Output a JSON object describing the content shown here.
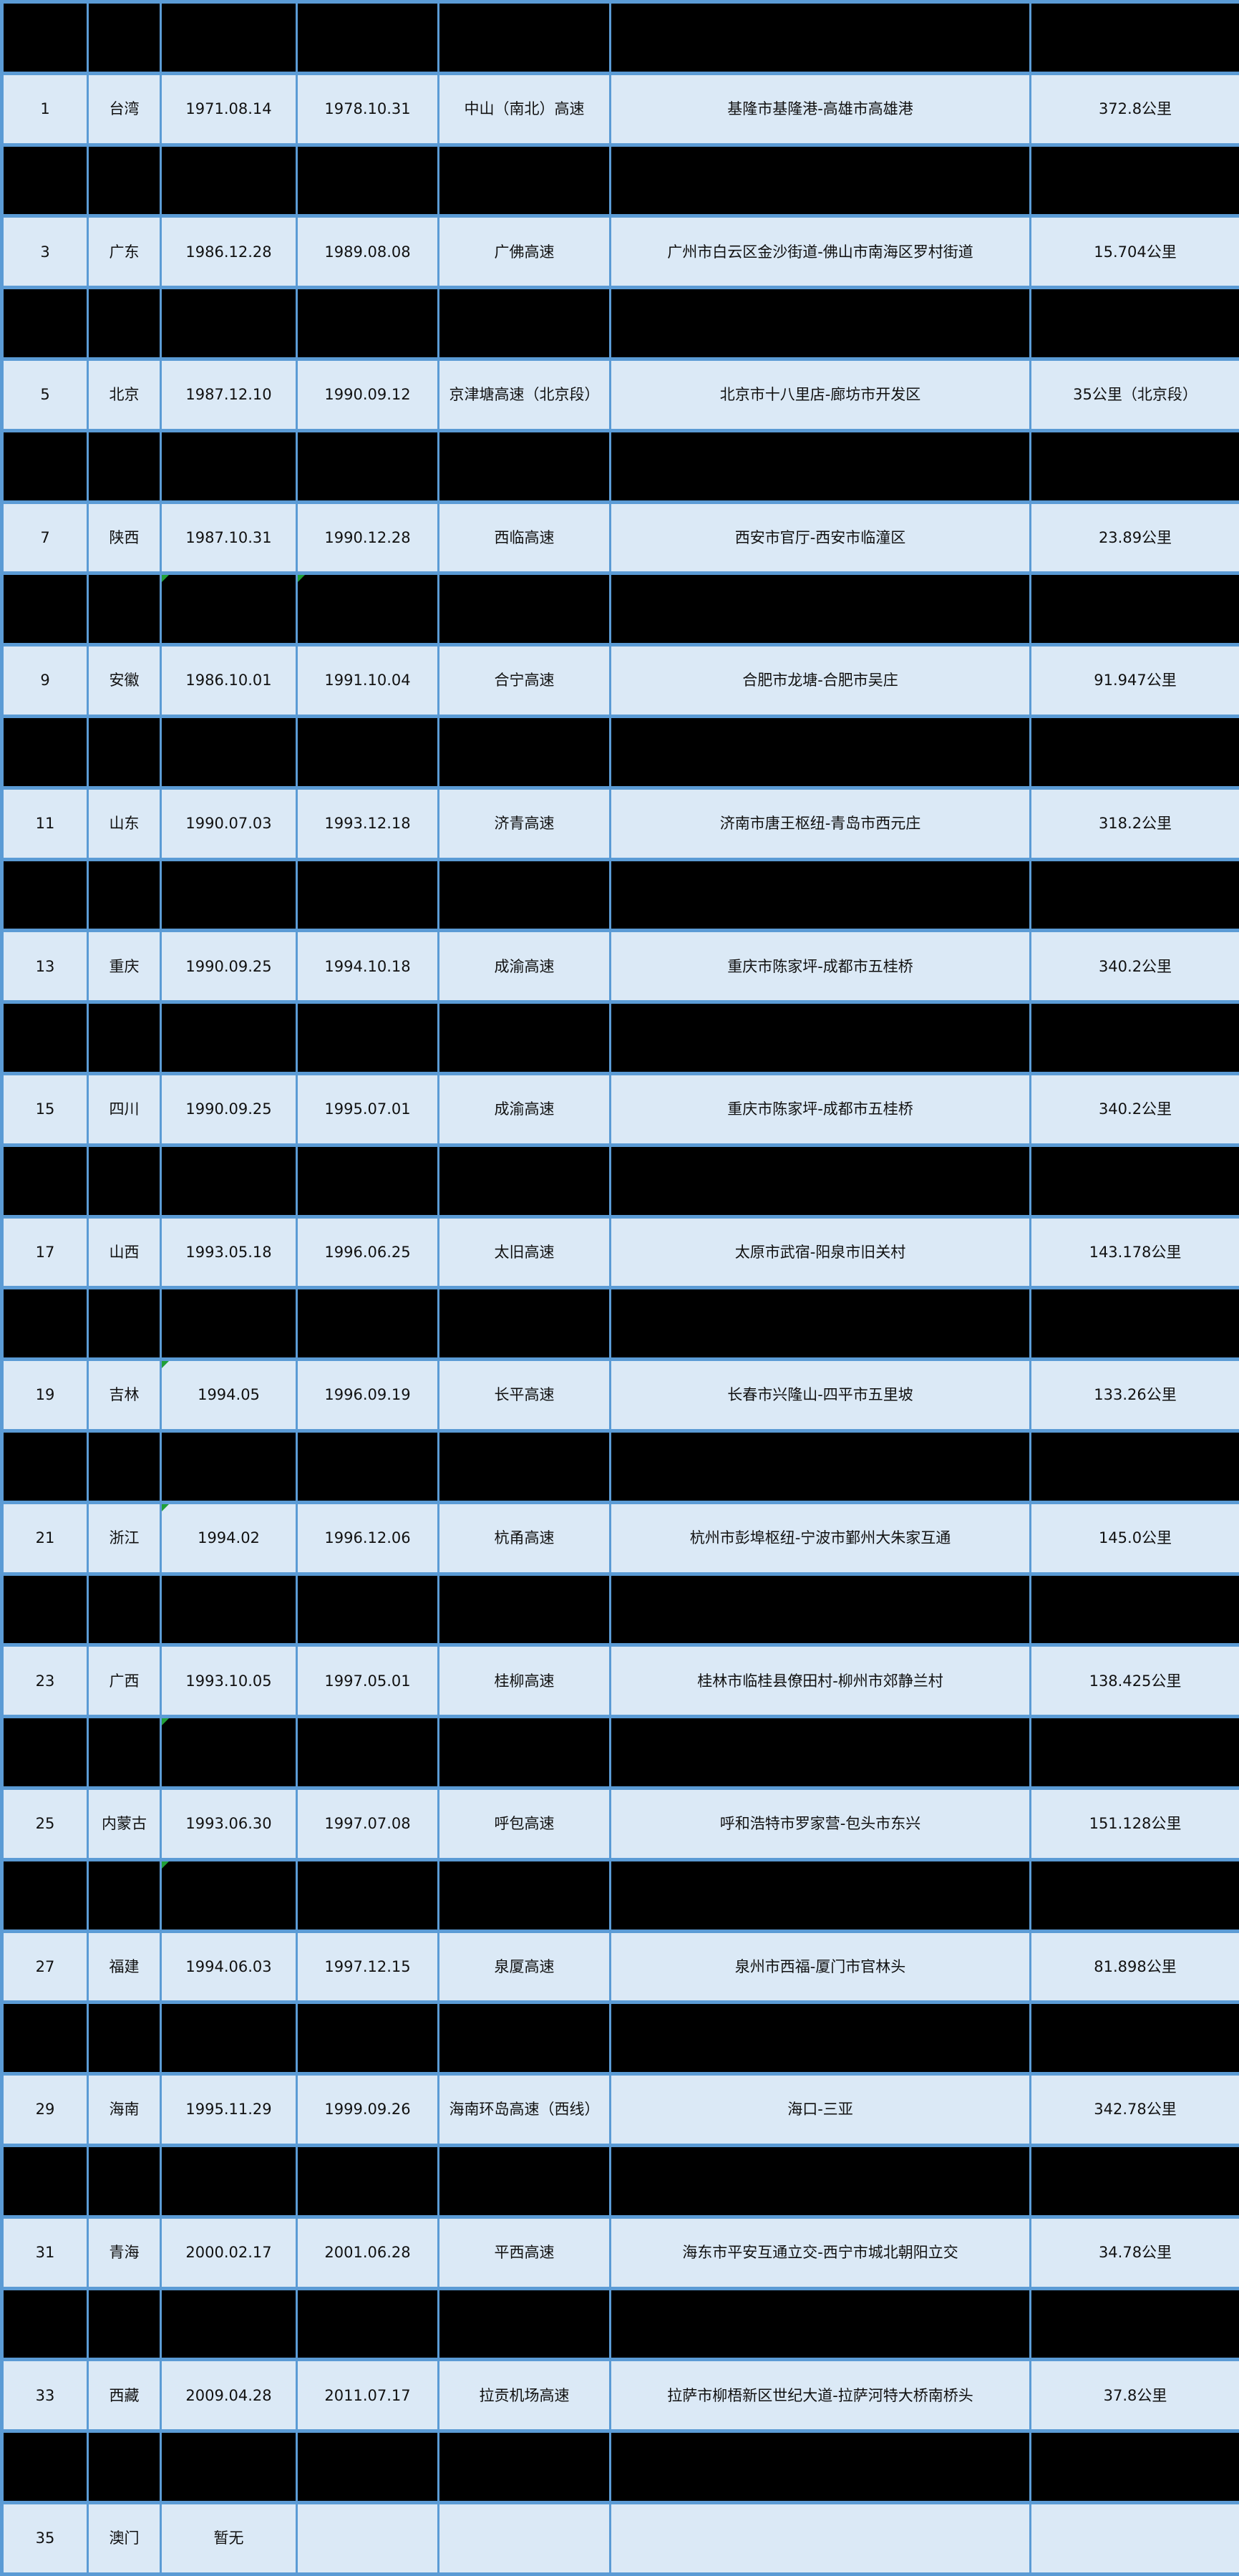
{
  "table": {
    "column_count": 7,
    "header_redacted": true,
    "length_unit_note": "公里",
    "rows": [
      {
        "redacted": true,
        "cells": [
          "",
          "",
          "",
          "",
          "",
          "",
          ""
        ]
      },
      {
        "redacted": false,
        "cells": [
          "1",
          "台湾",
          "1971.08.14",
          "1978.10.31",
          "中山（南北）高速",
          "基隆市基隆港-高雄市高雄港",
          "372.8公里"
        ]
      },
      {
        "redacted": true,
        "cells": [
          "",
          "",
          "",
          "",
          "",
          "",
          ""
        ]
      },
      {
        "redacted": false,
        "cells": [
          "3",
          "广东",
          "1986.12.28",
          "1989.08.08",
          "广佛高速",
          "广州市白云区金沙街道-佛山市南海区罗村街道",
          "15.704公里"
        ]
      },
      {
        "redacted": true,
        "cells": [
          "",
          "",
          "",
          "",
          "",
          "",
          ""
        ]
      },
      {
        "redacted": false,
        "cells": [
          "5",
          "北京",
          "1987.12.10",
          "1990.09.12",
          "京津塘高速（北京段）",
          "北京市十八里店-廊坊市开发区",
          "35公里（北京段）"
        ]
      },
      {
        "redacted": true,
        "cells": [
          "",
          "",
          "",
          "",
          "",
          "",
          ""
        ]
      },
      {
        "redacted": false,
        "cells": [
          "7",
          "陕西",
          "1987.10.31",
          "1990.12.28",
          "西临高速",
          "西安市官厅-西安市临潼区",
          "23.89公里"
        ]
      },
      {
        "redacted": true,
        "cells": [
          "",
          "",
          "",
          "",
          "",
          "",
          ""
        ]
      },
      {
        "redacted": false,
        "cells": [
          "9",
          "安徽",
          "1986.10.01",
          "1991.10.04",
          "合宁高速",
          "合肥市龙塘-合肥市吴庄",
          "91.947公里"
        ]
      },
      {
        "redacted": true,
        "cells": [
          "",
          "",
          "",
          "",
          "",
          "",
          ""
        ]
      },
      {
        "redacted": false,
        "cells": [
          "11",
          "山东",
          "1990.07.03",
          "1993.12.18",
          "济青高速",
          "济南市唐王枢纽-青岛市西元庄",
          "318.2公里"
        ]
      },
      {
        "redacted": true,
        "cells": [
          "",
          "",
          "",
          "",
          "",
          "",
          ""
        ]
      },
      {
        "redacted": false,
        "cells": [
          "13",
          "重庆",
          "1990.09.25",
          "1994.10.18",
          "成渝高速",
          "重庆市陈家坪-成都市五桂桥",
          "340.2公里"
        ]
      },
      {
        "redacted": true,
        "cells": [
          "",
          "",
          "",
          "",
          "",
          "",
          ""
        ]
      },
      {
        "redacted": false,
        "cells": [
          "15",
          "四川",
          "1990.09.25",
          "1995.07.01",
          "成渝高速",
          "重庆市陈家坪-成都市五桂桥",
          "340.2公里"
        ]
      },
      {
        "redacted": true,
        "cells": [
          "",
          "",
          "",
          "",
          "",
          "",
          ""
        ]
      },
      {
        "redacted": false,
        "cells": [
          "17",
          "山西",
          "1993.05.18",
          "1996.06.25",
          "太旧高速",
          "太原市武宿-阳泉市旧关村",
          "143.178公里"
        ]
      },
      {
        "redacted": true,
        "cells": [
          "",
          "",
          "",
          "",
          "",
          "",
          ""
        ]
      },
      {
        "redacted": false,
        "cells": [
          "19",
          "吉林",
          "1994.05",
          "1996.09.19",
          "长平高速",
          "长春市兴隆山-四平市五里坡",
          "133.26公里"
        ]
      },
      {
        "redacted": true,
        "cells": [
          "",
          "",
          "",
          "",
          "",
          "",
          ""
        ]
      },
      {
        "redacted": false,
        "cells": [
          "21",
          "浙江",
          "1994.02",
          "1996.12.06",
          "杭甬高速",
          "杭州市彭埠枢纽-宁波市鄞州大朱家互通",
          "145.0公里"
        ]
      },
      {
        "redacted": true,
        "cells": [
          "",
          "",
          "",
          "",
          "",
          "",
          ""
        ]
      },
      {
        "redacted": false,
        "cells": [
          "23",
          "广西",
          "1993.10.05",
          "1997.05.01",
          "桂柳高速",
          "桂林市临桂县僚田村-柳州市郊静兰村",
          "138.425公里"
        ]
      },
      {
        "redacted": true,
        "cells": [
          "",
          "",
          "",
          "",
          "",
          "",
          ""
        ]
      },
      {
        "redacted": false,
        "cells": [
          "25",
          "内蒙古",
          "1993.06.30",
          "1997.07.08",
          "呼包高速",
          "呼和浩特市罗家营-包头市东兴",
          "151.128公里"
        ]
      },
      {
        "redacted": true,
        "cells": [
          "",
          "",
          "",
          "",
          "",
          "",
          ""
        ]
      },
      {
        "redacted": false,
        "cells": [
          "27",
          "福建",
          "1994.06.03",
          "1997.12.15",
          "泉厦高速",
          "泉州市西福-厦门市官林头",
          "81.898公里"
        ]
      },
      {
        "redacted": true,
        "cells": [
          "",
          "",
          "",
          "",
          "",
          "",
          ""
        ]
      },
      {
        "redacted": false,
        "cells": [
          "29",
          "海南",
          "1995.11.29",
          "1999.09.26",
          "海南环岛高速（西线）",
          "海口-三亚",
          "342.78公里"
        ]
      },
      {
        "redacted": true,
        "cells": [
          "",
          "",
          "",
          "",
          "",
          "",
          ""
        ]
      },
      {
        "redacted": false,
        "cells": [
          "31",
          "青海",
          "2000.02.17",
          "2001.06.28",
          "平西高速",
          "海东市平安互通立交-西宁市城北朝阳立交",
          "34.78公里"
        ]
      },
      {
        "redacted": true,
        "cells": [
          "",
          "",
          "",
          "",
          "",
          "",
          ""
        ]
      },
      {
        "redacted": false,
        "cells": [
          "33",
          "西藏",
          "2009.04.28",
          "2011.07.17",
          "拉贡机场高速",
          "拉萨市柳梧新区世纪大道-拉萨河特大桥南桥头",
          "37.8公里"
        ]
      },
      {
        "redacted": true,
        "cells": [
          "",
          "",
          "",
          "",
          "",
          "",
          ""
        ]
      },
      {
        "redacted": false,
        "cells": [
          "35",
          "澳门",
          "暂无",
          "",
          "",
          "",
          ""
        ]
      }
    ]
  },
  "green_markers": [
    {
      "row": 8,
      "col": 2
    },
    {
      "row": 8,
      "col": 3
    },
    {
      "row": 19,
      "col": 2
    },
    {
      "row": 21,
      "col": 2
    },
    {
      "row": 24,
      "col": 2
    },
    {
      "row": 26,
      "col": 2
    }
  ],
  "colors": {
    "cell_bg": "#dbe9f6",
    "redacted_bg": "#000000",
    "grid_border": "#5b9bd5",
    "text": "#111111",
    "error_indicator_green": "#21a038"
  }
}
